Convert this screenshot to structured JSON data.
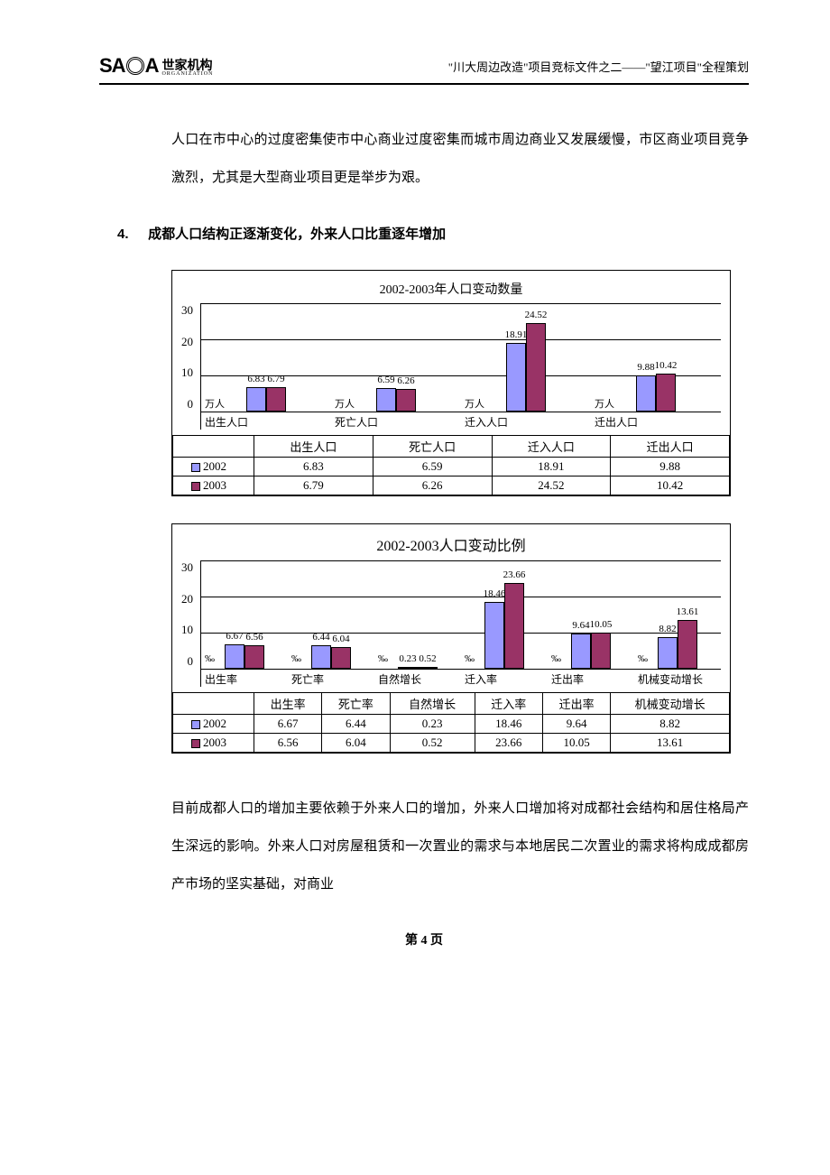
{
  "header": {
    "logo_en": "SA",
    "logo_en2": "A",
    "logo_cn": "世家机构",
    "logo_sub": "ORGANIZATION",
    "title": "\"川大周边改造\"项目竞标文件之二——\"望江项目\"全程策划"
  },
  "paragraph1": "人口在市中心的过度密集使市中心商业过度密集而城市周边商业又发展缓慢，市区商业项目竞争激烈，尤其是大型商业项目更是举步为艰。",
  "section": {
    "num": "4.",
    "title": "成都人口结构正逐渐变化，外来人口比重逐年增加"
  },
  "chart1": {
    "title": "2002-2003年人口变动数量",
    "ylim": 30,
    "yticks": [
      "30",
      "20",
      "10",
      "0"
    ],
    "unit": "万人",
    "categories": [
      "出生人口",
      "死亡人口",
      "迁入人口",
      "迁出人口"
    ],
    "series": [
      {
        "name": "2002",
        "color": "#9999ff",
        "values": [
          6.83,
          6.59,
          18.91,
          9.88
        ],
        "labels": [
          "6.83",
          "6.59",
          "18.91",
          "9.88"
        ]
      },
      {
        "name": "2003",
        "color": "#993366",
        "values": [
          6.79,
          6.26,
          24.52,
          10.42
        ],
        "labels": [
          "6.79",
          "6.26",
          "24.52",
          "10.42"
        ]
      }
    ]
  },
  "chart2": {
    "title": "2002-2003人口变动比例",
    "ylim": 30,
    "yticks": [
      "30",
      "20",
      "10",
      "0"
    ],
    "unit": "‰",
    "categories": [
      "出生率",
      "死亡率",
      "自然增长",
      "迁入率",
      "迁出率",
      "机械变动增长"
    ],
    "series": [
      {
        "name": "2002",
        "color": "#9999ff",
        "values": [
          6.67,
          6.44,
          0.23,
          18.46,
          9.64,
          8.82
        ],
        "labels": [
          "6.67",
          "6.44",
          "0.23",
          "18.46",
          "9.64",
          "8.82"
        ]
      },
      {
        "name": "2003",
        "color": "#993366",
        "values": [
          6.56,
          6.04,
          0.52,
          23.66,
          10.05,
          13.61
        ],
        "labels": [
          "6.56",
          "6.04",
          "0.52",
          "23.66",
          "10.05",
          "13.61"
        ]
      }
    ]
  },
  "paragraph2": "目前成都人口的增加主要依赖于外来人口的增加，外来人口增加将对成都社会结构和居住格局产生深远的影响。外来人口对房屋租赁和一次置业的需求与本地居民二次置业的需求将构成成都房产市场的坚实基础，对商业",
  "footer": "第 4 页"
}
